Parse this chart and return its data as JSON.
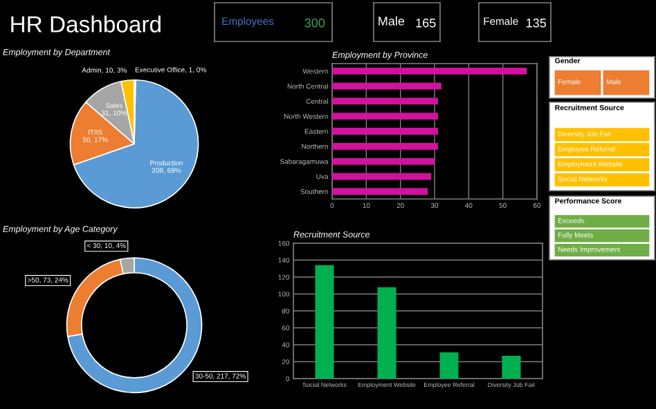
{
  "chart_data": [
    {
      "type": "other",
      "title": "HR Dashboard"
    },
    {
      "type": "other",
      "title": "Employees",
      "annotations": [
        "300"
      ],
      "colors": [
        "#4472c4",
        "#3aa655"
      ]
    },
    {
      "type": "other",
      "title": "Male",
      "annotations": [
        "165"
      ],
      "colors": [
        "#ffffff",
        "#ffffff"
      ]
    },
    {
      "type": "other",
      "title": "Female",
      "annotations": [
        "135"
      ],
      "colors": [
        "#ffffff",
        "#ffffff"
      ]
    },
    {
      "type": "pie",
      "title": "Employment by Department",
      "categories": [
        "Admin",
        "Sales",
        "IT/IS",
        "Production",
        "Executive Office"
      ],
      "values": [
        10,
        31,
        50,
        208,
        1
      ],
      "colors": [
        "#ffc000",
        "#a5a5a5",
        "#ed7d31",
        "#5b9bd5",
        "#4472c4"
      ],
      "value_labels": [
        "10, 3%",
        "31, 10%",
        "50, 17%",
        "208, 69%",
        "1, 0%"
      ]
    },
    {
      "type": "bar",
      "orientation": "horizontal",
      "title": "Employment by Province",
      "categories": [
        "Western",
        "North Central",
        "Central",
        "North Western",
        "Eastern",
        "Northern",
        "Sabaragamuwa",
        "Uva",
        "Southern"
      ],
      "values": [
        57,
        32,
        31,
        31,
        31,
        31,
        30,
        29,
        28
      ],
      "color": "#d2119f",
      "xlim": [
        0,
        60
      ],
      "xticks": [
        0,
        10,
        20,
        30,
        40,
        50,
        60
      ],
      "grid": "x"
    },
    {
      "type": "donut",
      "title": "Employment by Age Category",
      "categories": [
        "30-50",
        ">50",
        "< 30"
      ],
      "values": [
        217,
        73,
        10
      ],
      "colors": [
        "#5b9bd5",
        "#ed7d31",
        "#a5a5a5"
      ],
      "value_labels": [
        "217, 72%",
        "73, 24%",
        "10, 4%"
      ]
    },
    {
      "type": "bar",
      "title": "Recruitment Source",
      "categories": [
        "Social Networks",
        "Employment Website",
        "Employee Referral",
        "Diversity Job Fair"
      ],
      "values": [
        134,
        108,
        31,
        27
      ],
      "color": "#00b050",
      "ylim": [
        0,
        160
      ],
      "yticks": [
        0,
        20,
        40,
        60,
        80,
        100,
        120,
        140,
        160
      ],
      "grid": "y"
    },
    {
      "type": "other",
      "title": "Gender",
      "annotations": [
        "Female",
        "Male"
      ],
      "color": "#ed7d31"
    },
    {
      "type": "other",
      "title": "Recruitment Source",
      "annotations": [
        "Diversity Job Fair",
        "Employee Referral",
        "Employment Website",
        "Social Networks"
      ],
      "color": "#ffc000"
    },
    {
      "type": "other",
      "title": "Performance Score",
      "annotations": [
        "Exceeds",
        "Fully Meets",
        "Needs Improvement"
      ],
      "color": "#70ad47"
    }
  ]
}
